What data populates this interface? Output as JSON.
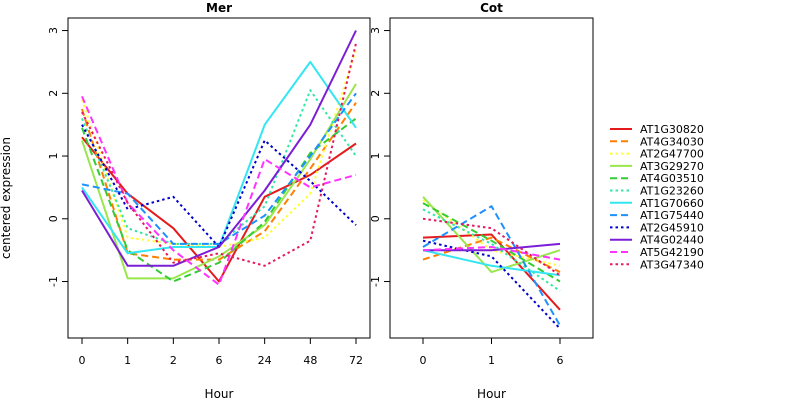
{
  "chart_data": {
    "type": "line",
    "ylabel": "centered expression",
    "legend_position": "right",
    "series_styles": [
      {
        "name": "AT1G30820",
        "color": "#e41a1c",
        "dash": "solid",
        "width": 2
      },
      {
        "name": "AT4G34030",
        "color": "#ff7f00",
        "dash": "dashed",
        "width": 2
      },
      {
        "name": "AT2G47700",
        "color": "#ffff33",
        "dash": "dotted",
        "width": 2
      },
      {
        "name": "AT3G29270",
        "color": "#99e64d",
        "dash": "solid",
        "width": 2
      },
      {
        "name": "AT4G03510",
        "color": "#33cc33",
        "dash": "dashed",
        "width": 2
      },
      {
        "name": "AT1G23260",
        "color": "#33e6a6",
        "dash": "dotted",
        "width": 2
      },
      {
        "name": "AT1G70660",
        "color": "#33e6f2",
        "dash": "solid",
        "width": 2
      },
      {
        "name": "AT1G75440",
        "color": "#1e90ff",
        "dash": "dashed",
        "width": 2
      },
      {
        "name": "AT2G45910",
        "color": "#0000cc",
        "dash": "dotted",
        "width": 2
      },
      {
        "name": "AT4G02440",
        "color": "#7b1fd6",
        "dash": "solid",
        "width": 2
      },
      {
        "name": "AT5G42190",
        "color": "#ff33ff",
        "dash": "dashed",
        "width": 2
      },
      {
        "name": "AT3G47340",
        "color": "#e6195e",
        "dash": "dotted",
        "width": 2
      }
    ],
    "panels": [
      {
        "title": "Mer",
        "xlabel": "Hour",
        "categories": [
          "0",
          "1",
          "2",
          "6",
          "24",
          "48",
          "72"
        ],
        "ylim": [
          -1.9,
          3.2
        ],
        "yticks": [
          -1,
          0,
          1,
          2,
          3
        ],
        "series": [
          [
            1.3,
            0.4,
            -0.15,
            -1.0,
            0.35,
            0.7,
            1.2
          ],
          [
            1.75,
            -0.55,
            -0.65,
            -0.65,
            -0.2,
            0.8,
            1.85
          ],
          [
            1.9,
            -0.3,
            -0.4,
            -0.45,
            -0.3,
            0.4,
            2.7
          ],
          [
            1.25,
            -0.95,
            -0.95,
            -0.6,
            -0.1,
            0.95,
            2.15
          ],
          [
            1.45,
            -0.5,
            -1.0,
            -0.7,
            -0.05,
            1.05,
            1.6
          ],
          [
            1.6,
            -0.15,
            -0.4,
            -0.4,
            0.2,
            2.05,
            1.0
          ],
          [
            0.5,
            -0.55,
            -0.45,
            -0.45,
            1.5,
            2.5,
            1.45
          ],
          [
            0.55,
            0.4,
            -0.4,
            -0.4,
            0.05,
            1.0,
            2.0
          ],
          [
            1.5,
            0.15,
            0.35,
            -0.45,
            1.25,
            0.6,
            -0.1
          ],
          [
            0.45,
            -0.75,
            -0.75,
            -0.45,
            0.45,
            1.5,
            3.0
          ],
          [
            1.95,
            0.25,
            -0.5,
            -1.05,
            0.95,
            0.5,
            0.7
          ],
          [
            1.7,
            0.25,
            -0.7,
            -0.55,
            -0.75,
            -0.35,
            2.8
          ]
        ]
      },
      {
        "title": "Cot",
        "xlabel": "Hour",
        "categories": [
          "0",
          "1",
          "6"
        ],
        "ylim": [
          -1.9,
          3.2
        ],
        "yticks": [
          -1,
          0,
          1,
          2,
          3
        ],
        "series": [
          [
            -0.3,
            -0.25,
            -1.45
          ],
          [
            -0.65,
            -0.3,
            -0.85
          ],
          [
            0.3,
            -0.5,
            -0.75
          ],
          [
            0.35,
            -0.85,
            -0.5
          ],
          [
            0.25,
            -0.35,
            -1.0
          ],
          [
            0.15,
            -0.4,
            -1.15
          ],
          [
            -0.5,
            -0.75,
            -0.9
          ],
          [
            -0.45,
            0.2,
            -1.7
          ],
          [
            -0.35,
            -0.6,
            -1.75
          ],
          [
            -0.5,
            -0.5,
            -0.4
          ],
          [
            -0.5,
            -0.45,
            -0.65
          ],
          [
            0.0,
            -0.15,
            -0.9
          ]
        ]
      }
    ]
  }
}
